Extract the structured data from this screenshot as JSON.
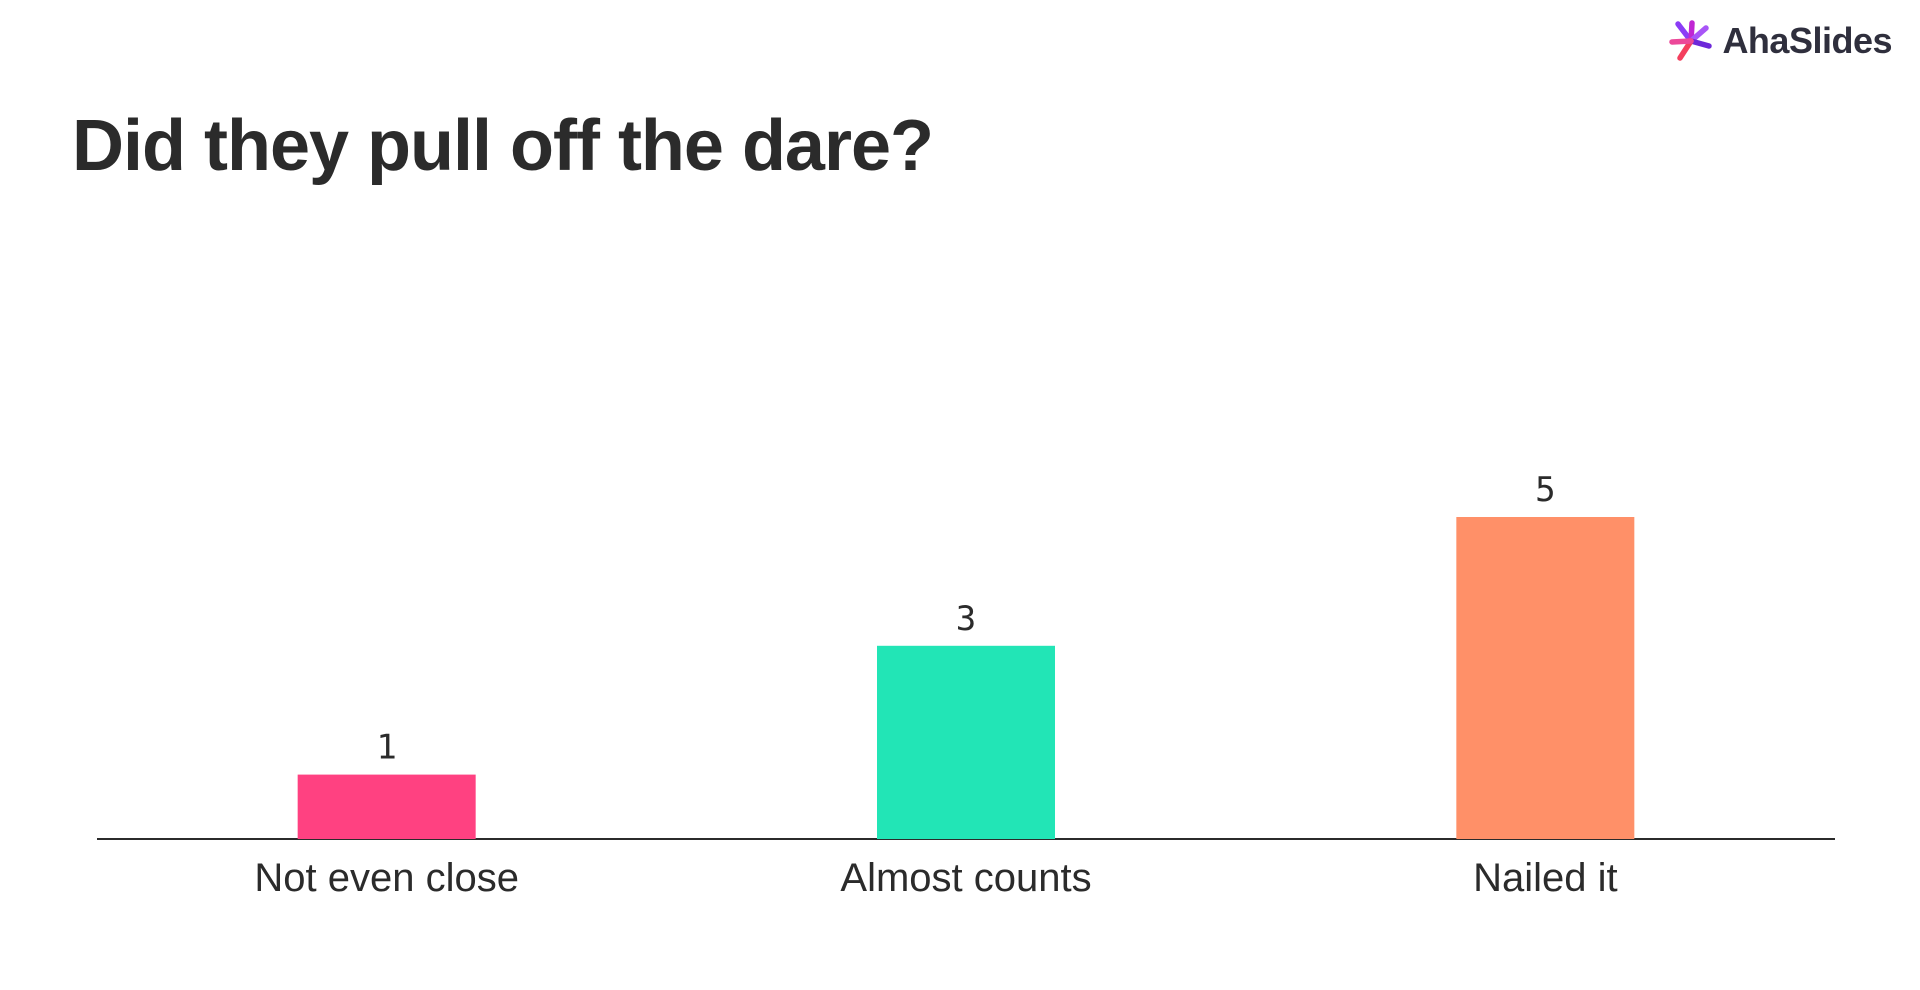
{
  "logo": {
    "text": "AhaSlides",
    "icon": "ahaslides-logo-icon"
  },
  "title": "Did they pull off the dare?",
  "chart_data": {
    "type": "bar",
    "categories": [
      "Not even close",
      "Almost counts",
      "Nailed it"
    ],
    "values": [
      1,
      3,
      5
    ],
    "colors": [
      "#ff4181",
      "#22e5b6",
      "#ff9068"
    ],
    "title": "Did they pull off the dare?",
    "xlabel": "",
    "ylabel": "",
    "ylim": [
      0,
      5
    ],
    "grid": false,
    "legend": "none"
  },
  "colors": {
    "axis": "#2b2b2b",
    "text": "#2b2b2b"
  }
}
